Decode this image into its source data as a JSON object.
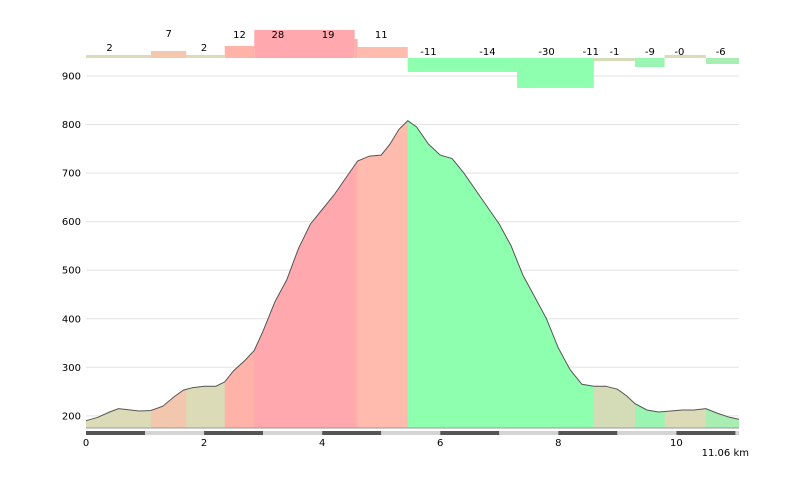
{
  "chart_data": {
    "type": "area",
    "x_unit_label": "11.06 km",
    "xlim": [
      0,
      11.06
    ],
    "ylim": [
      175,
      900
    ],
    "y_ticks": [
      200,
      300,
      400,
      500,
      600,
      700,
      800,
      900
    ],
    "x_ticks": [
      0,
      2,
      4,
      6,
      8,
      10
    ],
    "grid": true,
    "elevation_profile": {
      "x": [
        0,
        0.2,
        0.4,
        0.55,
        0.7,
        0.9,
        1.1,
        1.3,
        1.5,
        1.65,
        1.8,
        2.0,
        2.2,
        2.35,
        2.5,
        2.7,
        2.85,
        3.0,
        3.2,
        3.4,
        3.6,
        3.8,
        4.0,
        4.2,
        4.4,
        4.6,
        4.8,
        5.0,
        5.15,
        5.3,
        5.45,
        5.6,
        5.8,
        6.0,
        6.2,
        6.4,
        6.6,
        6.8,
        7.0,
        7.2,
        7.4,
        7.6,
        7.8,
        8.0,
        8.2,
        8.4,
        8.6,
        8.8,
        9.0,
        9.15,
        9.3,
        9.5,
        9.7,
        9.9,
        10.1,
        10.3,
        10.5,
        10.7,
        10.9,
        11.06
      ],
      "y": [
        190,
        197,
        208,
        215,
        213,
        210,
        211,
        220,
        240,
        253,
        258,
        261,
        261,
        270,
        293,
        315,
        335,
        375,
        435,
        480,
        545,
        595,
        625,
        655,
        690,
        725,
        735,
        737,
        760,
        790,
        808,
        795,
        760,
        737,
        730,
        700,
        665,
        630,
        595,
        550,
        490,
        445,
        400,
        340,
        295,
        265,
        261,
        261,
        255,
        242,
        225,
        212,
        208,
        210,
        212,
        212,
        215,
        205,
        197,
        193
      ]
    },
    "segments": [
      {
        "x0": 0,
        "x1": 1.1,
        "grade": "2",
        "value": 2,
        "color": "#dbdbb7"
      },
      {
        "x0": 1.1,
        "x1": 1.7,
        "grade": "7",
        "value": 7,
        "color": "#f3c6ae"
      },
      {
        "x0": 1.7,
        "x1": 2.35,
        "grade": "2",
        "value": 2,
        "color": "#dbdbb7"
      },
      {
        "x0": 2.35,
        "x1": 2.85,
        "grade": "12",
        "value": 12,
        "color": "#ffb3a8"
      },
      {
        "x0": 2.85,
        "x1": 4.55,
        "grade": "28",
        "value": 28,
        "color": "#ffa8ad"
      },
      {
        "x0": 4.55,
        "x1": 4.6,
        "grade": "19",
        "value": 19,
        "color": "#ffafab"
      },
      {
        "x0": 4.6,
        "x1": 5.45,
        "grade": "11",
        "value": 11,
        "color": "#ffbbad"
      },
      {
        "x0": 5.45,
        "x1": 8.6,
        "grade": "-11",
        "value": -11,
        "color": "#8effaf"
      },
      {
        "x0": 5.45,
        "x1": 7.3,
        "grade": "-14",
        "value": -14,
        "color": "#8effaf"
      },
      {
        "x0": 7.3,
        "x1": 8.6,
        "grade": "-30",
        "value": -30,
        "color": "#8effaf"
      },
      {
        "x0": 8.6,
        "x1": 8.6,
        "grade": "-11",
        "value": -11,
        "color": "#8effaf"
      },
      {
        "x0": 8.6,
        "x1": 9.3,
        "grade": "-1",
        "value": -1,
        "color": "#d3dcb6"
      },
      {
        "x0": 9.3,
        "x1": 9.8,
        "grade": "-9",
        "value": -9,
        "color": "#9bf5b2"
      },
      {
        "x0": 9.8,
        "x1": 10.5,
        "grade": "-0",
        "value": 0,
        "color": "#dbdbb7"
      },
      {
        "x0": 10.5,
        "x1": 11.06,
        "grade": "-6",
        "value": -6,
        "color": "#a8eeb3"
      }
    ]
  }
}
